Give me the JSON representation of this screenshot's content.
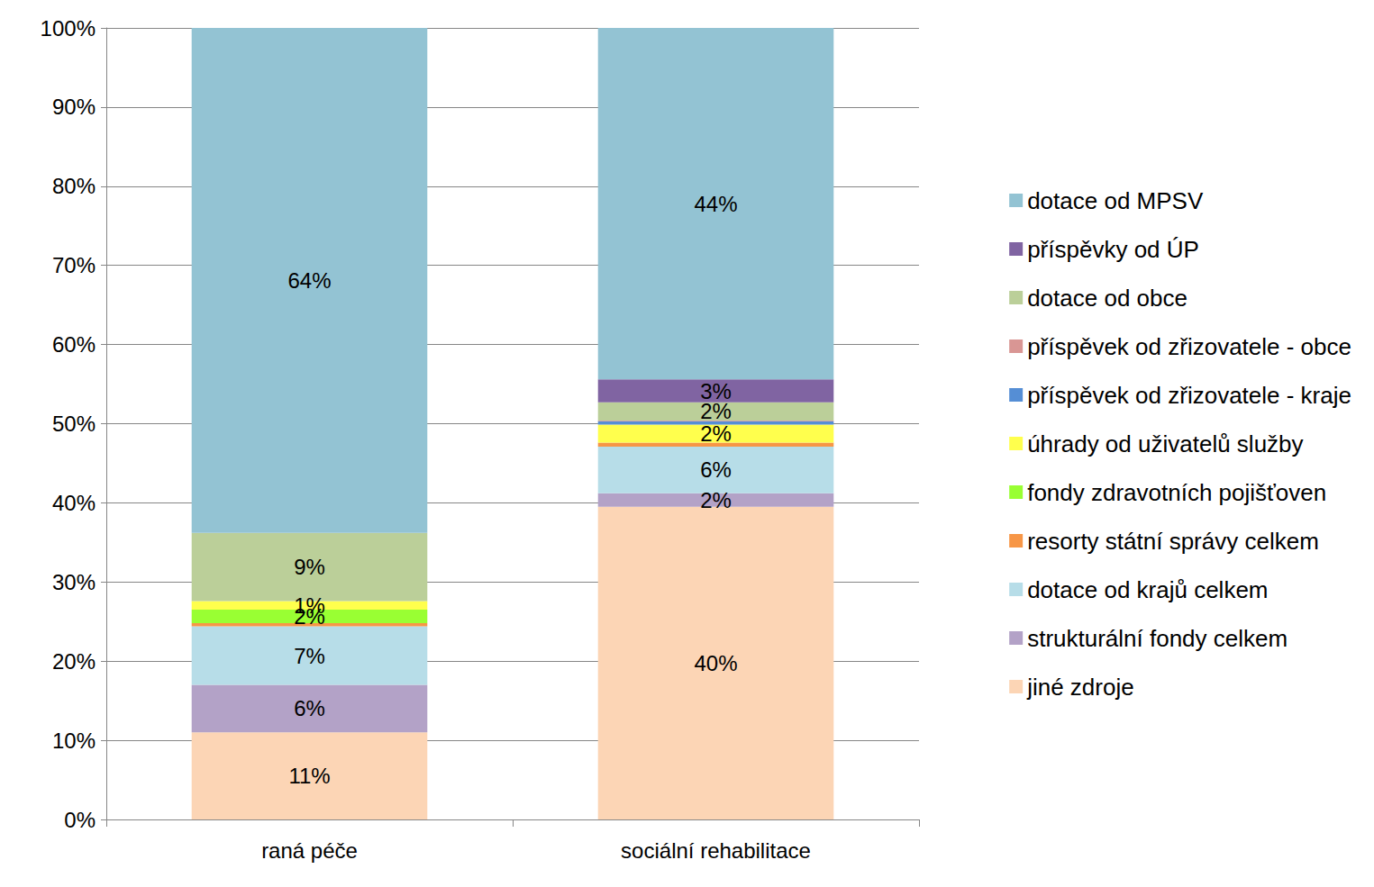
{
  "chart_data": {
    "type": "bar",
    "stacked": true,
    "data_labels": true,
    "grid": true,
    "legend": "right",
    "categories": [
      "raná péče",
      "sociální rehabilitace"
    ],
    "ylim": [
      0,
      100
    ],
    "yticks": [
      {
        "value": 0,
        "label": "0%"
      },
      {
        "value": 10,
        "label": "10%"
      },
      {
        "value": 20,
        "label": "20%"
      },
      {
        "value": 30,
        "label": "30%"
      },
      {
        "value": 40,
        "label": "40%"
      },
      {
        "value": 50,
        "label": "50%"
      },
      {
        "value": 60,
        "label": "60%"
      },
      {
        "value": 70,
        "label": "70%"
      },
      {
        "value": 80,
        "label": "80%"
      },
      {
        "value": 90,
        "label": "90%"
      },
      {
        "value": 100,
        "label": "100%"
      }
    ],
    "series": [
      {
        "name": "jiné zdroje",
        "color": "#fcd5b5",
        "values": [
          11,
          39.5
        ],
        "value_labels": [
          "11%",
          "40%"
        ]
      },
      {
        "name": "strukturální fondy celkem",
        "color": "#b3a2c7",
        "values": [
          6,
          1.7
        ],
        "value_labels": [
          "6%",
          "2%"
        ]
      },
      {
        "name": "dotace od krajů celkem",
        "color": "#b7dde8",
        "values": [
          7.4,
          5.9
        ],
        "value_labels": [
          "7%",
          "6%"
        ]
      },
      {
        "name": "resorty státní správy celkem",
        "color": "#f79646",
        "values": [
          0.4,
          0.5
        ],
        "value_labels": [
          null,
          null
        ]
      },
      {
        "name": "fondy zdravotních pojišťoven",
        "color": "#99ff33",
        "values": [
          1.7,
          0
        ],
        "value_labels": [
          "2%",
          null
        ]
      },
      {
        "name": "úhrady od uživatelů služby",
        "color": "#ffff4d",
        "values": [
          1.1,
          2.3
        ],
        "value_labels": [
          "1%",
          "2%"
        ]
      },
      {
        "name": "příspěvek od zřizovatele - kraje",
        "color": "#558ed5",
        "values": [
          0,
          0.4
        ],
        "value_labels": [
          null,
          null
        ]
      },
      {
        "name": "příspěvek od zřizovatele - obce",
        "color": "#d99694",
        "values": [
          0,
          0.1
        ],
        "value_labels": [
          null,
          null
        ]
      },
      {
        "name": "dotace od obce",
        "color": "#bbcf99",
        "values": [
          8.6,
          2.3
        ],
        "value_labels": [
          "9%",
          "2%"
        ]
      },
      {
        "name": "příspěvky od ÚP",
        "color": "#8064a2",
        "values": [
          0,
          2.9
        ],
        "value_labels": [
          null,
          "3%"
        ]
      },
      {
        "name": "dotace od MPSV",
        "color": "#93c3d3",
        "values": [
          63.8,
          44.4
        ],
        "value_labels": [
          "64%",
          "44%"
        ]
      }
    ]
  }
}
